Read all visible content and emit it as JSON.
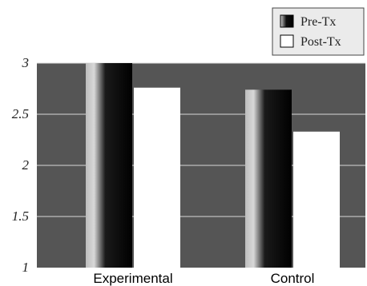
{
  "chart_data": {
    "type": "bar",
    "categories": [
      "Experimental",
      "Control"
    ],
    "series": [
      {
        "name": "Pre-Tx",
        "values": [
          3.0,
          2.74
        ],
        "fill": "black-gradient"
      },
      {
        "name": "Post-Tx",
        "values": [
          2.76,
          2.33
        ],
        "fill": "#ffffff"
      }
    ],
    "title": "",
    "xlabel": "",
    "ylabel": "",
    "ylim": [
      1,
      3
    ],
    "yticks": [
      {
        "value": 1,
        "label": "1"
      },
      {
        "value": 1.5,
        "label": "1.5"
      },
      {
        "value": 2,
        "label": "2"
      },
      {
        "value": 2.5,
        "label": "2.5"
      },
      {
        "value": 3,
        "label": "3"
      }
    ],
    "grid": true,
    "legend_position": "top-right",
    "colors": {
      "plot_background": "#555555",
      "gridline": "#d8d8d8",
      "legend_background": "#ebebeb"
    }
  }
}
